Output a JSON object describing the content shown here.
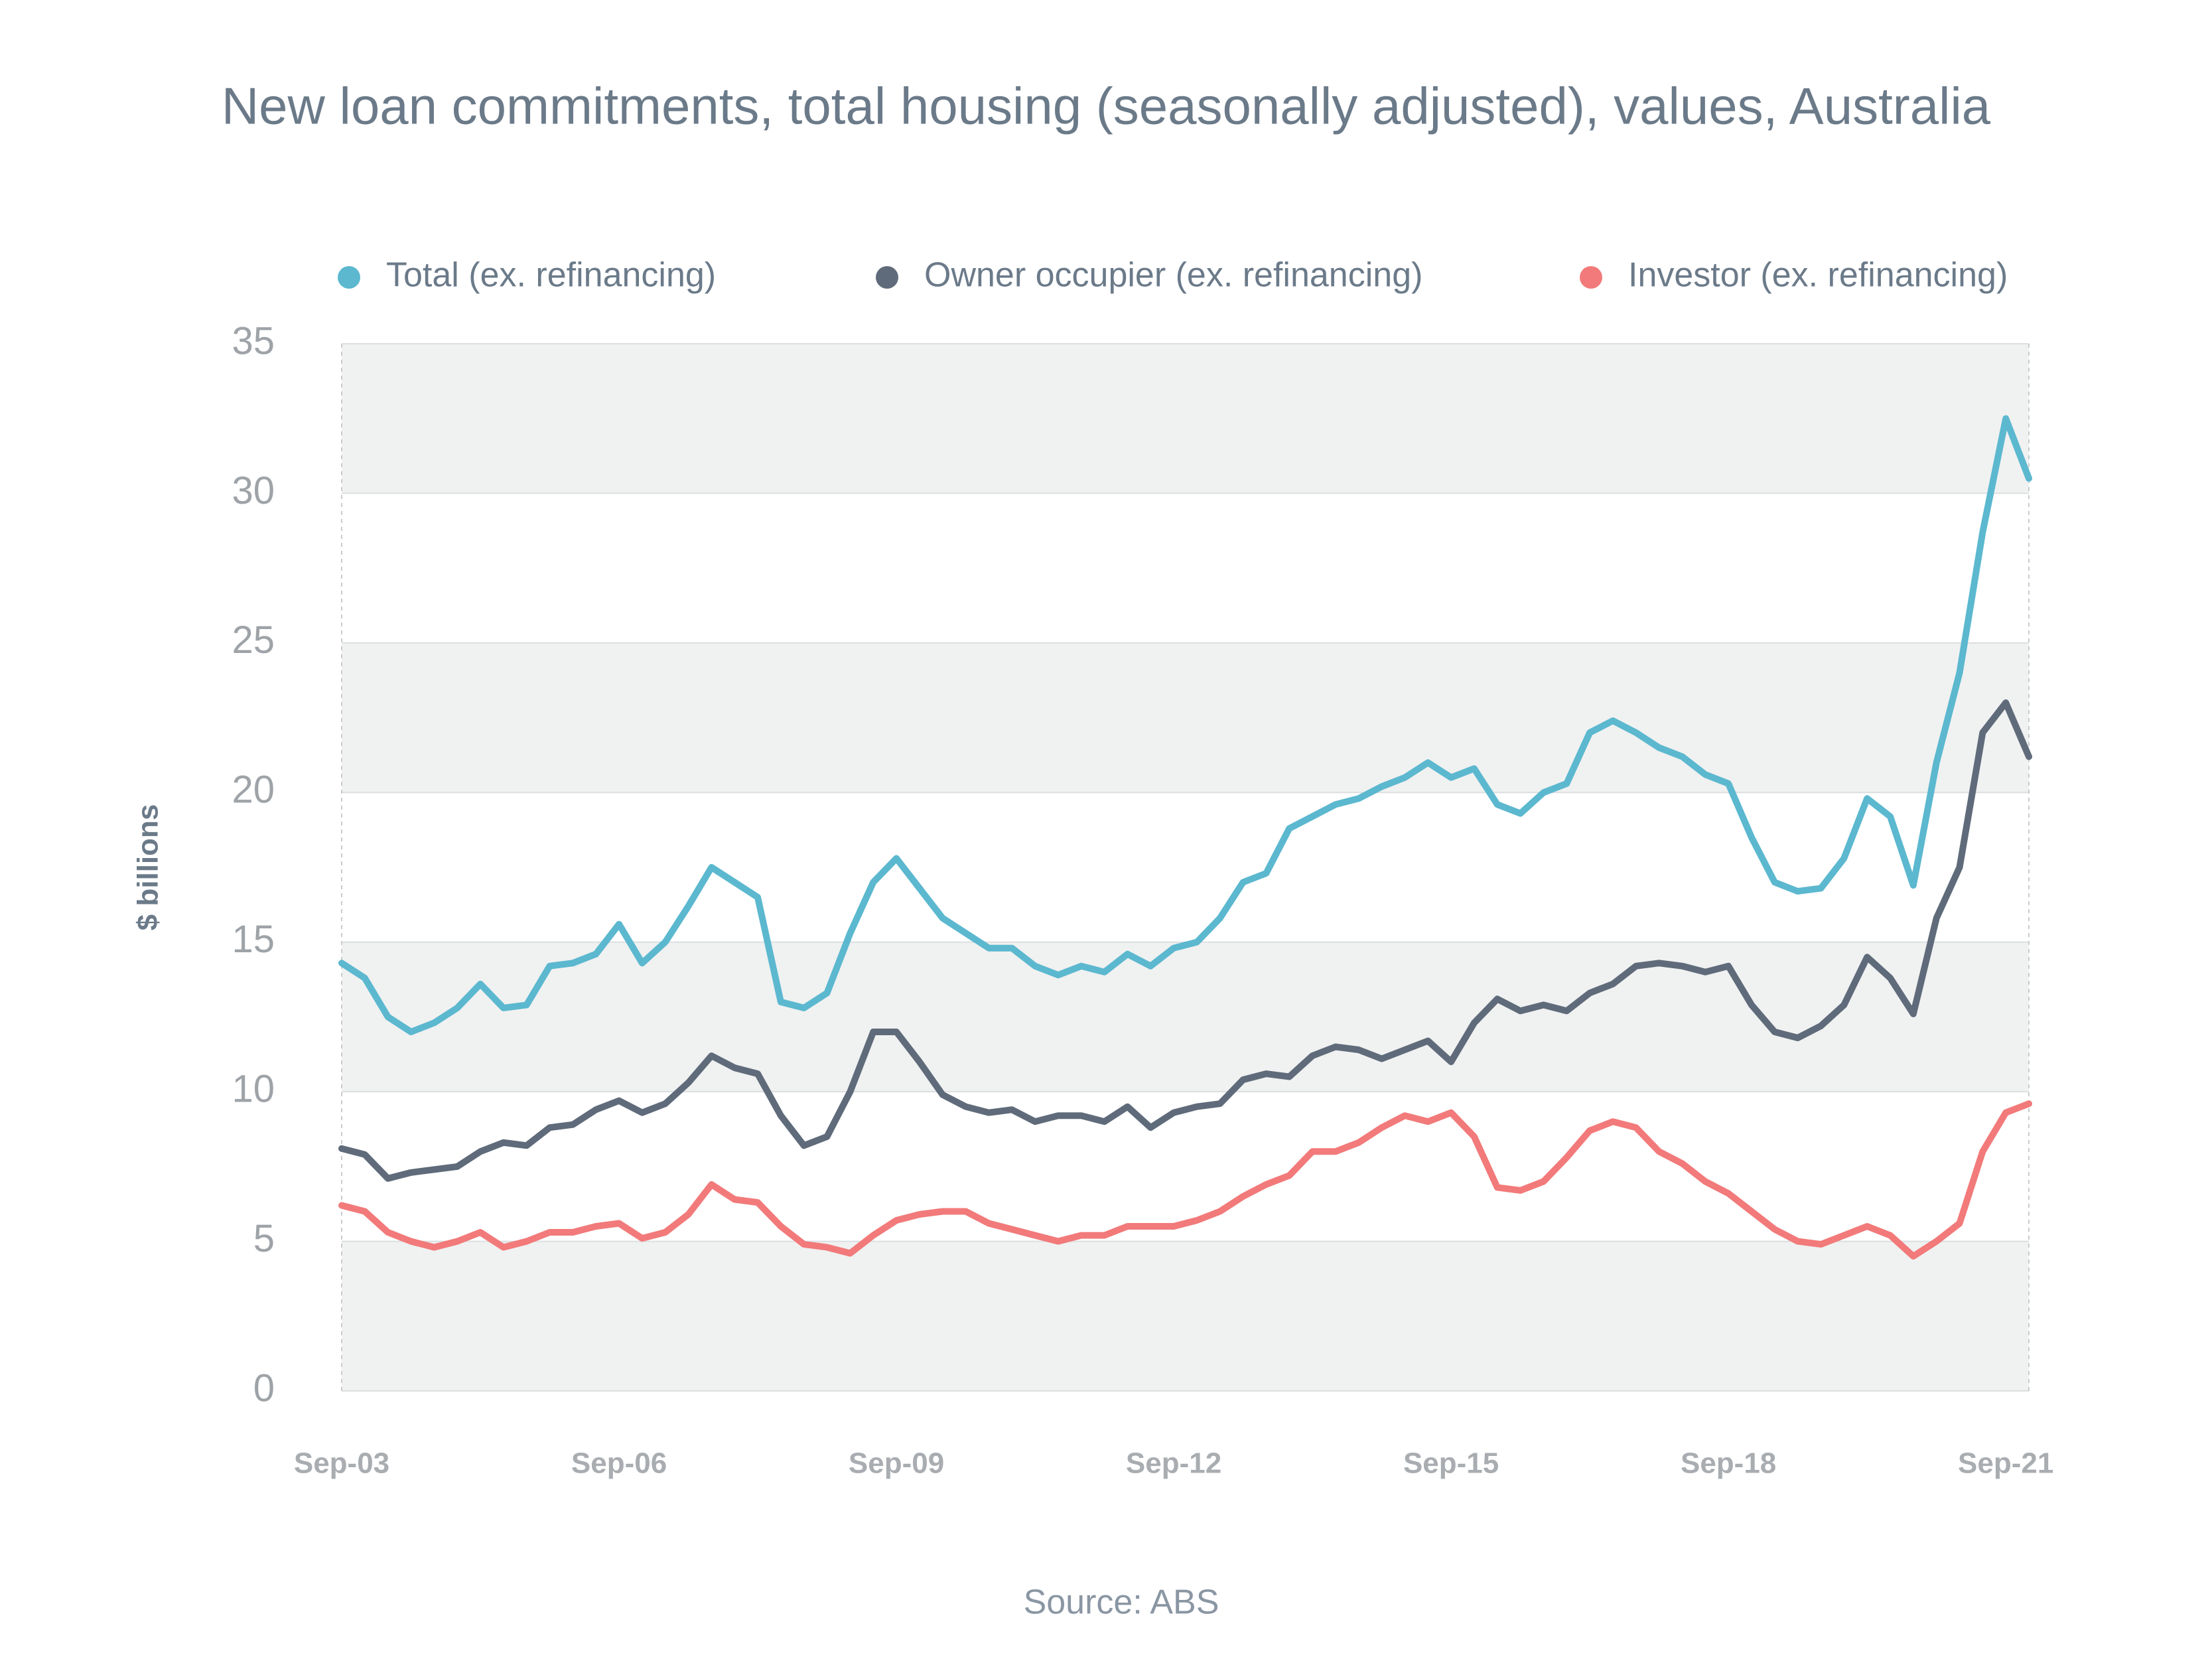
{
  "chart_data": {
    "type": "line",
    "title": "New loan commitments, total housing (seasonally adjusted), values, Australia",
    "y_label": "$ billions",
    "source": "Source: ABS",
    "legend": "top",
    "grid": true,
    "categories": [
      "Sep-03",
      null,
      null,
      null,
      null,
      null,
      null,
      null,
      null,
      null,
      null,
      null,
      "Sep-06",
      null,
      null,
      null,
      null,
      null,
      null,
      null,
      null,
      null,
      null,
      null,
      "Sep-09",
      null,
      null,
      null,
      null,
      null,
      null,
      null,
      null,
      null,
      null,
      null,
      "Sep-12",
      null,
      null,
      null,
      null,
      null,
      null,
      null,
      null,
      null,
      null,
      null,
      "Sep-15",
      null,
      null,
      null,
      null,
      null,
      null,
      null,
      null,
      null,
      null,
      null,
      "Sep-18",
      null,
      null,
      null,
      null,
      null,
      null,
      null,
      null,
      null,
      null,
      null,
      "Sep-21",
      null
    ],
    "ylim": [
      0,
      35
    ],
    "yticks": [
      0,
      5,
      10,
      15,
      20,
      25,
      30,
      35
    ],
    "series": [
      {
        "name": "Total (ex. refinancing)",
        "color": "#5bb8cf",
        "values": [
          14.3,
          13.8,
          12.5,
          12.0,
          12.3,
          12.8,
          13.6,
          12.8,
          12.9,
          14.2,
          14.3,
          14.6,
          15.6,
          14.3,
          15.0,
          16.2,
          17.5,
          17.0,
          16.5,
          13.0,
          12.8,
          13.3,
          15.3,
          17.0,
          17.8,
          16.8,
          15.8,
          15.3,
          14.8,
          14.8,
          14.2,
          13.9,
          14.2,
          14.0,
          14.6,
          14.2,
          14.8,
          15.0,
          15.8,
          17.0,
          17.3,
          18.8,
          19.2,
          19.6,
          19.8,
          20.2,
          20.5,
          21.0,
          20.5,
          20.8,
          19.6,
          19.3,
          20.0,
          20.3,
          22.0,
          22.4,
          22.0,
          21.5,
          21.2,
          20.6,
          20.3,
          18.5,
          17.0,
          16.7,
          16.8,
          17.8,
          19.8,
          19.2,
          16.9,
          21.0,
          24.0,
          28.7,
          32.5,
          30.5
        ]
      },
      {
        "name": "Owner occupier (ex. refinancing)",
        "color": "#5f6b7a",
        "values": [
          8.1,
          7.9,
          7.1,
          7.3,
          7.4,
          7.5,
          8.0,
          8.3,
          8.2,
          8.8,
          8.9,
          9.4,
          9.7,
          9.3,
          9.6,
          10.3,
          11.2,
          10.8,
          10.6,
          9.2,
          8.2,
          8.5,
          10.0,
          12.0,
          12.0,
          11.0,
          9.9,
          9.5,
          9.3,
          9.4,
          9.0,
          9.2,
          9.2,
          9.0,
          9.5,
          8.8,
          9.3,
          9.5,
          9.6,
          10.4,
          10.6,
          10.5,
          11.2,
          11.5,
          11.4,
          11.1,
          11.4,
          11.7,
          11.0,
          12.3,
          13.1,
          12.7,
          12.9,
          12.7,
          13.3,
          13.6,
          14.2,
          14.3,
          14.2,
          14.0,
          14.2,
          12.9,
          12.0,
          11.8,
          12.2,
          12.9,
          14.5,
          13.8,
          12.6,
          15.8,
          17.5,
          22.0,
          23.0,
          21.2
        ]
      },
      {
        "name": "Investor (ex. refinancing)",
        "color": "#f27a7a",
        "values": [
          6.2,
          6.0,
          5.3,
          5.0,
          4.8,
          5.0,
          5.3,
          4.8,
          5.0,
          5.3,
          5.3,
          5.5,
          5.6,
          5.1,
          5.3,
          5.9,
          6.9,
          6.4,
          6.3,
          5.5,
          4.9,
          4.8,
          4.6,
          5.2,
          5.7,
          5.9,
          6.0,
          6.0,
          5.6,
          5.4,
          5.2,
          5.0,
          5.2,
          5.2,
          5.5,
          5.5,
          5.5,
          5.7,
          6.0,
          6.5,
          6.9,
          7.2,
          8.0,
          8.0,
          8.3,
          8.8,
          9.2,
          9.0,
          9.3,
          8.5,
          6.8,
          6.7,
          7.0,
          7.8,
          8.7,
          9.0,
          8.8,
          8.0,
          7.6,
          7.0,
          6.6,
          6.0,
          5.4,
          5.0,
          4.9,
          5.2,
          5.5,
          5.2,
          4.5,
          5.0,
          5.6,
          8.0,
          9.3,
          9.6
        ]
      }
    ]
  }
}
